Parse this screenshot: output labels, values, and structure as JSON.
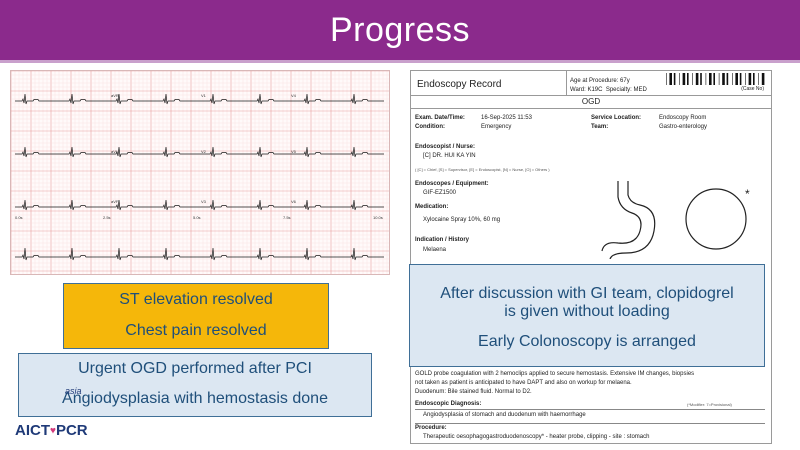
{
  "slide": {
    "title": "Progress",
    "colors": {
      "banner": "#8b2a8c",
      "orange_box": "#f5b70a",
      "blue_box": "#dce7f2",
      "text_blue": "#1f4f7a"
    }
  },
  "ecg": {
    "leads": [
      "aVR",
      "V1",
      "V4",
      "aVL",
      "V2",
      "V5",
      "aVF",
      "V3",
      "V6"
    ],
    "footer": [
      "0.0s",
      "2.5s",
      "5.0s",
      "7.5s",
      "10.0s"
    ]
  },
  "record": {
    "title": "Endoscopy Record",
    "age_label": "Age at Procedure:",
    "age": "67y",
    "ward_label": "Ward:",
    "ward": "K19C",
    "specialty_label": "Specialty:",
    "specialty": "MED",
    "case_no": "(Case No)",
    "procedure_header": "OGD",
    "exam_label": "Exam. Date/Time:",
    "exam_value": "16-Sep-2025 11:53",
    "condition_label": "Condition:",
    "condition_value": "Emergency",
    "service_label": "Service Location:",
    "service_value": "Endoscopy Room",
    "team_label": "Team:",
    "team_value": "Gastro-enterology",
    "endoscopist_label": "Endoscopist / Nurse:",
    "endoscopist_value": "[C] DR. HUI KA YIN",
    "legend": "( [C] = Chief, [S] = Supervisor, [E] = Endoscopist, [N] = Nurse, [O] = Others )",
    "equipment_label": "Endoscopes / Equipment:",
    "equipment_value": "GIF-EZ1500",
    "medication_label": "Medication:",
    "medication_value": "Xylocaine Spray 10%, 60 mg",
    "indication_label": "Indication / History",
    "indication_value": "Melaena",
    "findings_1": "GOLD probe coagulation with 2 hemoclips applied to secure hemostasis. Extensive IM changes, biopsies",
    "findings_2": "not taken as patient is anticipated to have DAPT and also on workup for melaena.",
    "findings_3": "Duodenum: Bile stained fluid. Normal to D2.",
    "diagnosis_label": "Endoscopic Diagnosis:",
    "modifier": "(*Modifier: 7=Provisional)",
    "diagnosis_value": "Angiodysplasia of stomach and duodenum with haemorrhage",
    "procedure_label": "Procedure:",
    "procedure_value": "Therapeutic oesophagogastroduodenoscopy* - heater probe, clipping - site : stomach",
    "asterisk": "*"
  },
  "boxes": {
    "st_line1": "ST elevation resolved",
    "st_line2": "Chest pain resolved",
    "ogd_line1": "Urgent OGD performed after PCI",
    "ogd_line2": "Angiodysplasia with hemostasis done",
    "gi_line1": "After discussion with GI team, clopidogrel",
    "gi_line2": "is given without loading",
    "gi_line3": "Early Colonoscopy is arranged"
  },
  "logo": {
    "asia": "asia",
    "aict": "AICT",
    "pcr": "PCR"
  }
}
